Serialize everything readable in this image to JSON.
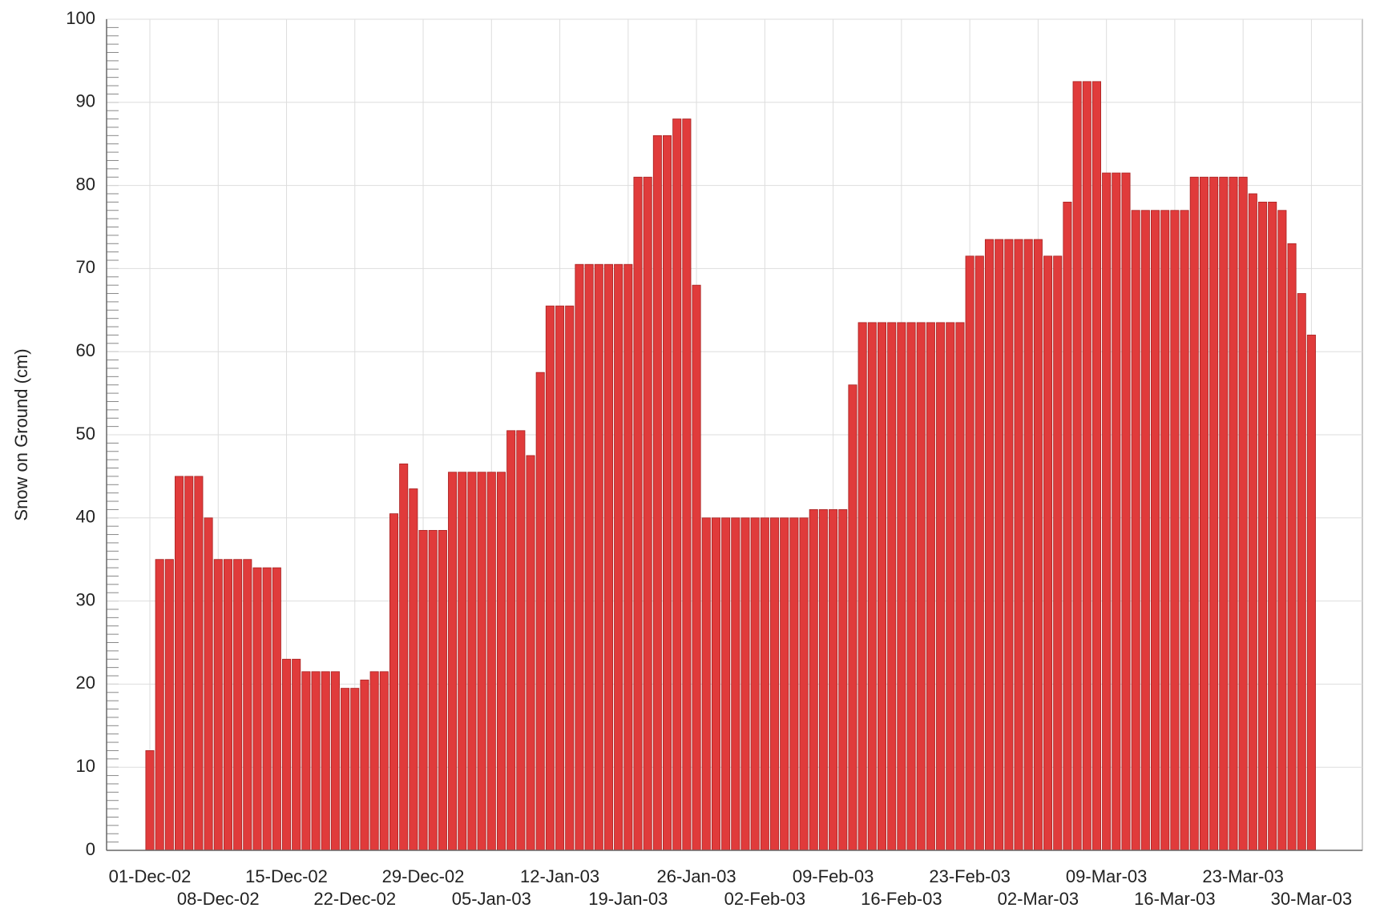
{
  "chart_data": {
    "type": "bar",
    "y_label": "Snow on Ground (cm)",
    "color": "#e03b3b",
    "categories": [
      "01-Dec-02",
      null,
      null,
      null,
      null,
      null,
      null,
      "08-Dec-02",
      null,
      null,
      null,
      null,
      null,
      null,
      "15-Dec-02",
      null,
      null,
      null,
      null,
      null,
      null,
      "22-Dec-02",
      null,
      null,
      null,
      null,
      null,
      null,
      "29-Dec-02",
      null,
      null,
      null,
      null,
      null,
      null,
      "05-Jan-03",
      null,
      null,
      null,
      null,
      null,
      null,
      "12-Jan-03",
      null,
      null,
      null,
      null,
      null,
      null,
      "19-Jan-03",
      null,
      null,
      null,
      null,
      null,
      null,
      "26-Jan-03",
      null,
      null,
      null,
      null,
      null,
      null,
      "02-Feb-03",
      null,
      null,
      null,
      null,
      null,
      null,
      "09-Feb-03",
      null,
      null,
      null,
      null,
      null,
      null,
      "16-Feb-03",
      null,
      null,
      null,
      null,
      null,
      null,
      "23-Feb-03",
      null,
      null,
      null,
      null,
      null,
      null,
      "02-Mar-03",
      null,
      null,
      null,
      null,
      null,
      null,
      "09-Mar-03",
      null,
      null,
      null,
      null,
      null,
      null,
      "16-Mar-03",
      null,
      null,
      null,
      null,
      null,
      null,
      "23-Mar-03",
      null,
      null,
      null,
      null,
      null,
      null,
      "30-Mar-03"
    ],
    "values": [
      12,
      35,
      35,
      45,
      45,
      45,
      40,
      35,
      35,
      35,
      35,
      34,
      34,
      34,
      23,
      23,
      21.5,
      21.5,
      21.5,
      21.5,
      19.5,
      19.5,
      20.5,
      21.5,
      21.5,
      40.5,
      46.5,
      43.5,
      38.5,
      38.5,
      38.5,
      45.5,
      45.5,
      45.5,
      45.5,
      45.5,
      45.5,
      50.5,
      50.5,
      47.5,
      57.5,
      65.5,
      65.5,
      65.5,
      70.5,
      70.5,
      70.5,
      70.5,
      70.5,
      70.5,
      81,
      81,
      86,
      86,
      88,
      88,
      68,
      40,
      40,
      40,
      40,
      40,
      40,
      40,
      40,
      40,
      40,
      40,
      41,
      41,
      41,
      41,
      56,
      63.5,
      63.5,
      63.5,
      63.5,
      63.5,
      63.5,
      63.5,
      63.5,
      63.5,
      63.5,
      63.5,
      71.5,
      71.5,
      73.5,
      73.5,
      73.5,
      73.5,
      73.5,
      73.5,
      71.5,
      71.5,
      78,
      92.5,
      92.5,
      92.5,
      81.5,
      81.5,
      81.5,
      77,
      77,
      77,
      77,
      77,
      77,
      81,
      81,
      81,
      81,
      81,
      81,
      79,
      78,
      78,
      77,
      73,
      67,
      62
    ],
    "ylim": [
      0,
      100
    ],
    "yticks": [
      0,
      10,
      20,
      30,
      40,
      50,
      60,
      70,
      80,
      90,
      100
    ],
    "grid": true
  }
}
